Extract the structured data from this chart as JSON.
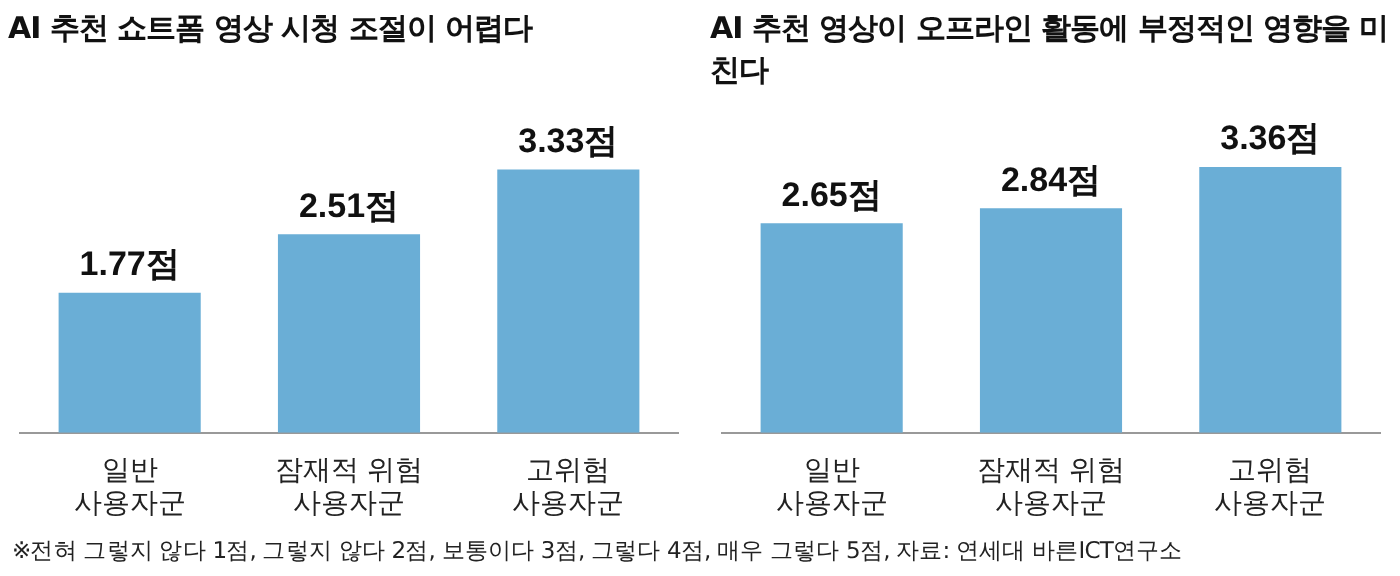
{
  "chart_data": [
    {
      "type": "bar",
      "title": "AI 추천 쇼트폼 영상 시청 조절이 어렵다",
      "categories": [
        "일반 사용자군",
        "잠재적 위험 사용자군",
        "고위험 사용자군"
      ],
      "values": [
        1.77,
        2.51,
        3.33
      ],
      "value_labels": [
        "1.77점",
        "2.51점",
        "3.33점"
      ],
      "color": "#6aaed6",
      "tick_labels": "x",
      "annotations": [
        "※전혀 그렇지 않다 1점, 그렇지 않다 2점, 보통이다 3점, 그렇다 4점, 매우 그렇다 5점, 자료: 연세대 바른ICT연구소"
      ]
    },
    {
      "type": "bar",
      "title": "AI 추천 영상이 오프라인 활동에 부정적인 영향을 미친다",
      "categories": [
        "일반 사용자군",
        "잠재적 위험 사용자군",
        "고위험 사용자군"
      ],
      "values": [
        2.65,
        2.84,
        3.36
      ],
      "value_labels": [
        "2.65점",
        "2.84점",
        "3.36점"
      ],
      "color": "#6aaed6",
      "tick_labels": "x"
    }
  ]
}
